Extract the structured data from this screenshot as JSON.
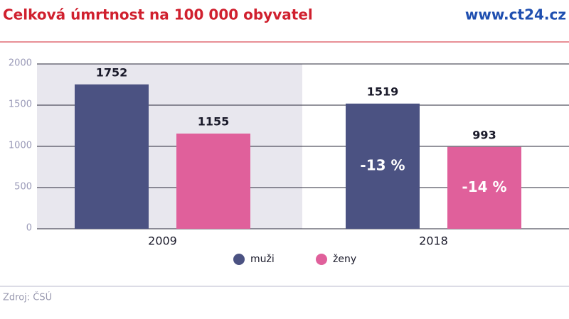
{
  "chart_data": {
    "type": "bar",
    "title": "Celková úmrtnost na 100 000 obyvatel",
    "brand": "www.ct24.cz",
    "source": "Zdroj: ČSÚ",
    "categories": [
      "2009",
      "2018"
    ],
    "series": [
      {
        "name": "muži",
        "color": "#4b5282",
        "values": [
          1752,
          1519
        ],
        "annotations": [
          null,
          "-13 %"
        ]
      },
      {
        "name": "ženy",
        "color": "#e0609b",
        "values": [
          1155,
          993
        ],
        "annotations": [
          null,
          "-14 %"
        ]
      }
    ],
    "ylim": [
      0,
      2000
    ],
    "yticks": [
      0,
      500,
      1000,
      1500,
      2000
    ],
    "grid": true
  }
}
